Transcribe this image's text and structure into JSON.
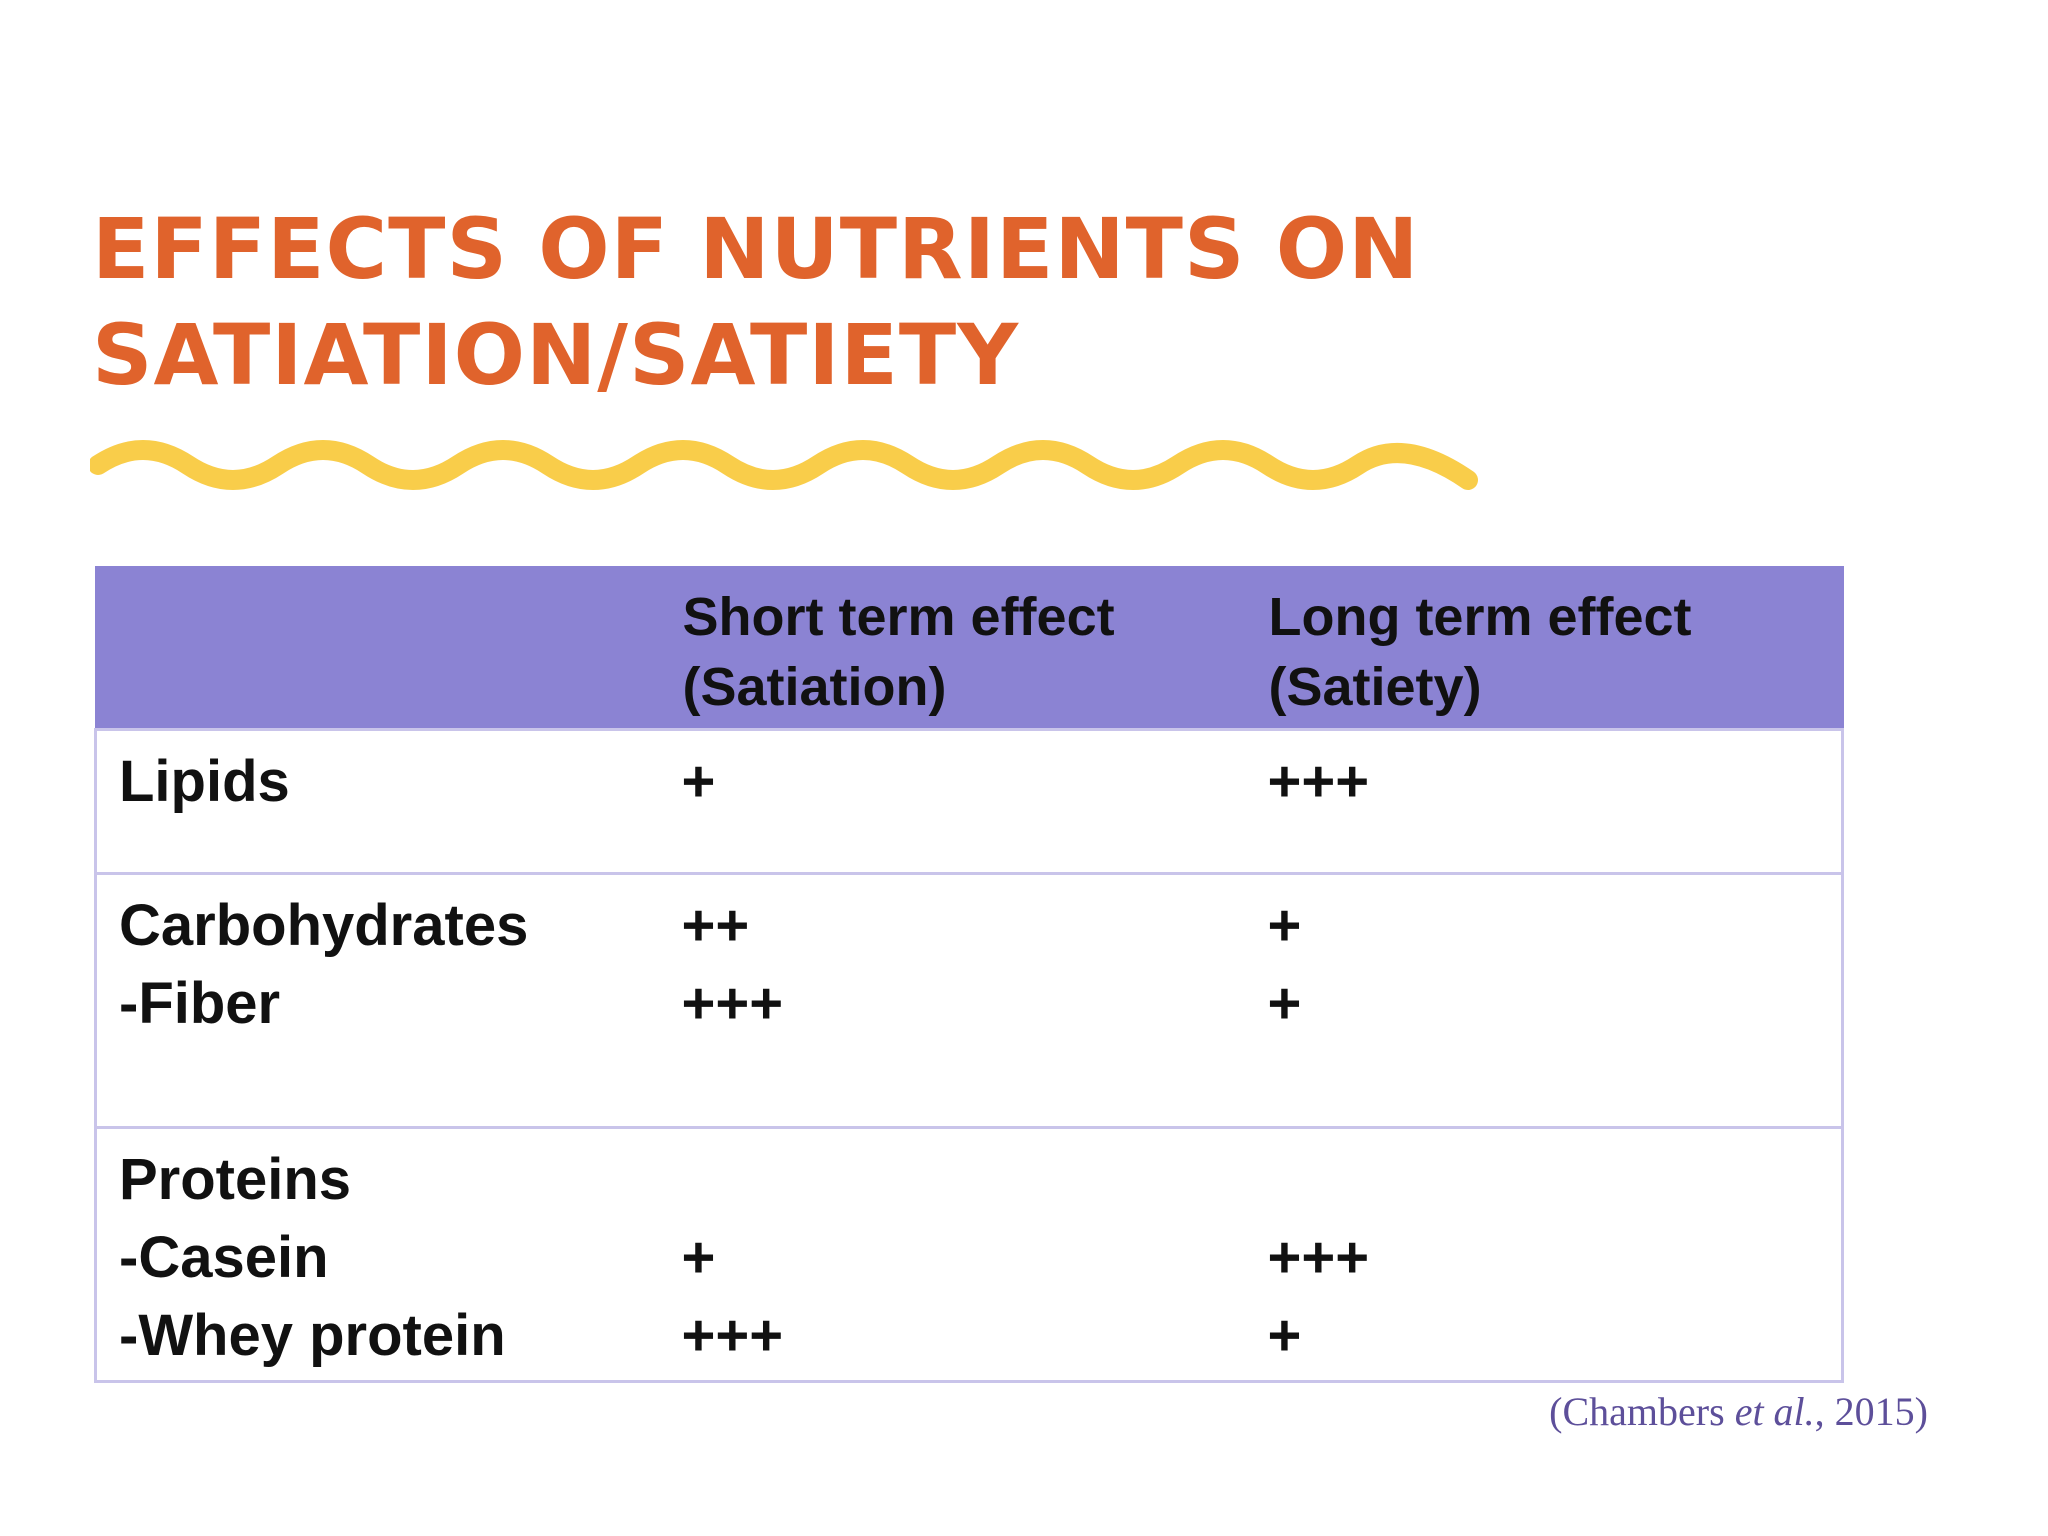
{
  "title": {
    "line1": "EFFECTS OF NUTRIENTS ON",
    "line2": "SATIATION/SATIETY"
  },
  "colors": {
    "title": "#e0632c",
    "wave": "#f9cd4a",
    "header_bg": "#8b83d3",
    "border": "#c9c4ea",
    "citation": "#5d4f9a"
  },
  "table": {
    "headers": {
      "col1": "",
      "col2_line1": "Short term effect",
      "col2_line2": "(Satiation)",
      "col3_line1": "Long term effect",
      "col3_line2": "(Satiety)"
    },
    "rows": [
      {
        "lines": [
          {
            "label": "Lipids",
            "short": "+",
            "long": "+++"
          }
        ]
      },
      {
        "lines": [
          {
            "label": "Carbohydrates",
            "short": "++",
            "long": "+"
          },
          {
            "label": "-Fiber",
            "short": "+++",
            "long": "+"
          }
        ]
      },
      {
        "lines": [
          {
            "label": "Proteins",
            "short": "",
            "long": ""
          },
          {
            "label": "-Casein",
            "short": "+",
            "long": "+++"
          },
          {
            "label": "-Whey protein",
            "short": "+++",
            "long": "+"
          }
        ]
      }
    ]
  },
  "citation": {
    "open": "(Chambers ",
    "italic": "et al.",
    "close": ", 2015)"
  }
}
